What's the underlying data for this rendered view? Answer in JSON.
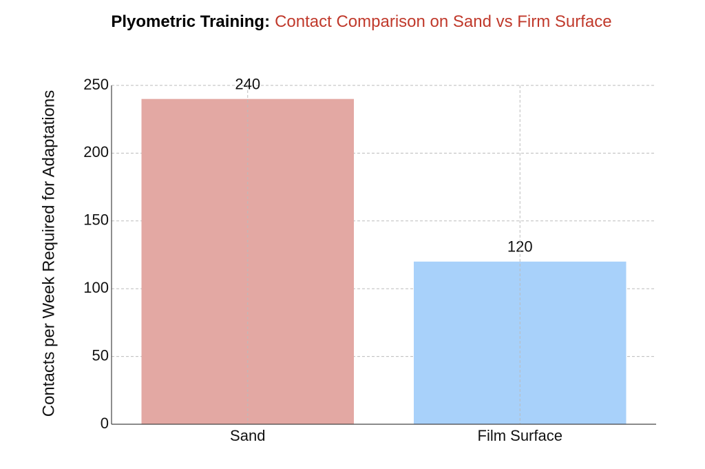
{
  "chart_data": {
    "type": "bar",
    "title": "Plyometric Training:",
    "subtitle": "Contact Comparison on Sand vs Firm Surface",
    "y_label": "Contacts per Week Required for Adaptations",
    "categories": [
      "Sand",
      "Film Surface"
    ],
    "values": [
      240,
      120
    ],
    "colors": [
      "#e3a8a3",
      "#a8d1fa"
    ],
    "title_color": "#000000",
    "subtitle_color": "#c0392b",
    "ylim": [
      0,
      250
    ],
    "yticks": [
      0,
      50,
      100,
      150,
      200,
      250
    ],
    "grid": true
  }
}
